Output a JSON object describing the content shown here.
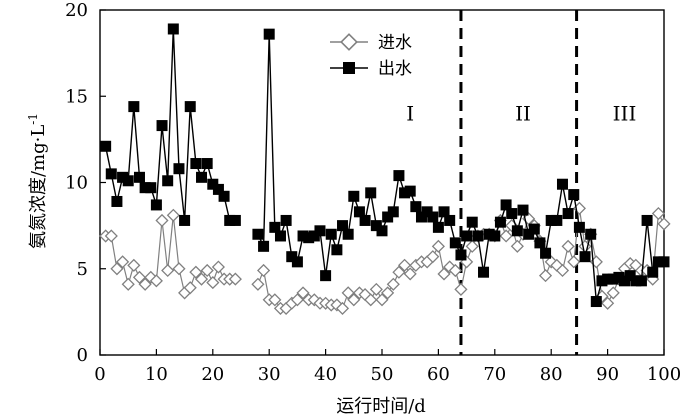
{
  "chart_data": {
    "type": "line",
    "title": "",
    "xlabel": "运行时间/d",
    "ylabel": "氨氮浓度/mg·L",
    "ylabel_sup": "-1",
    "xlim": [
      0,
      100
    ],
    "ylim": [
      0,
      20
    ],
    "xticks": [
      0,
      10,
      20,
      30,
      40,
      50,
      60,
      70,
      80,
      90,
      100
    ],
    "yticks": [
      0,
      5,
      10,
      15,
      20
    ],
    "grid": false,
    "legend": "top-center",
    "phase_boundaries": [
      64,
      84.5
    ],
    "phase_labels": [
      {
        "text": "I",
        "x": 55,
        "y": 14
      },
      {
        "text": "II",
        "x": 75,
        "y": 14
      },
      {
        "text": "III",
        "x": 93,
        "y": 14
      }
    ],
    "series": [
      {
        "name": "进水",
        "marker": "diamond-open",
        "color": "#808080",
        "x": [
          1,
          2,
          3,
          4,
          5,
          6,
          7,
          8,
          9,
          10,
          11,
          12,
          13,
          14,
          15,
          16,
          17,
          18,
          19,
          20,
          21,
          22,
          23,
          24,
          28,
          29,
          30,
          31,
          32,
          33,
          34,
          35,
          36,
          37,
          38,
          39,
          40,
          41,
          42,
          43,
          44,
          45,
          46,
          47,
          48,
          49,
          50,
          51,
          52,
          53,
          54,
          55,
          56,
          57,
          58,
          59,
          60,
          61,
          62,
          63,
          64,
          65,
          66,
          67,
          68,
          69,
          70,
          71,
          72,
          73,
          74,
          75,
          76,
          77,
          78,
          79,
          80,
          81,
          82,
          83,
          84,
          85,
          86,
          87,
          88,
          89,
          90,
          91,
          92,
          93,
          94,
          95,
          96,
          97,
          98,
          99,
          100
        ],
        "values": [
          6.9,
          6.9,
          5.0,
          5.4,
          4.1,
          5.2,
          4.5,
          4.1,
          4.5,
          4.3,
          7.8,
          4.9,
          8.1,
          5.0,
          3.6,
          3.9,
          4.8,
          4.4,
          4.9,
          4.2,
          5.1,
          4.4,
          4.4,
          4.4,
          4.1,
          4.9,
          3.2,
          3.2,
          2.7,
          2.7,
          3.0,
          3.2,
          3.6,
          3.2,
          3.2,
          3.0,
          3.0,
          2.9,
          2.9,
          2.7,
          3.6,
          3.2,
          3.6,
          3.5,
          3.2,
          3.8,
          3.2,
          3.6,
          4.1,
          4.8,
          5.2,
          4.7,
          5.2,
          5.4,
          5.4,
          5.7,
          6.3,
          4.7,
          5.1,
          4.9,
          3.8,
          5.4,
          6.3,
          6.9,
          7.0,
          7.0,
          6.9,
          7.8,
          6.9,
          7.5,
          6.3,
          7.0,
          7.9,
          7.5,
          6.6,
          4.6,
          5.4,
          5.2,
          4.9,
          6.3,
          5.4,
          8.5,
          6.3,
          7.0,
          5.4,
          3.4,
          3.0,
          3.6,
          4.4,
          5.0,
          5.3,
          5.2,
          4.9,
          4.9,
          4.4,
          8.2,
          7.6
        ]
      },
      {
        "name": "出水",
        "marker": "square-filled",
        "color": "#000000",
        "x": [
          1,
          2,
          3,
          4,
          5,
          6,
          7,
          8,
          9,
          10,
          11,
          12,
          13,
          14,
          15,
          16,
          17,
          18,
          19,
          20,
          21,
          22,
          23,
          24,
          28,
          29,
          30,
          31,
          32,
          33,
          34,
          35,
          36,
          37,
          38,
          39,
          40,
          41,
          42,
          43,
          44,
          45,
          46,
          47,
          48,
          49,
          50,
          51,
          52,
          53,
          54,
          55,
          56,
          57,
          58,
          59,
          60,
          61,
          62,
          63,
          64,
          65,
          66,
          67,
          68,
          69,
          70,
          71,
          72,
          73,
          74,
          75,
          76,
          77,
          78,
          79,
          80,
          81,
          82,
          83,
          84,
          85,
          86,
          87,
          88,
          89,
          90,
          91,
          92,
          93,
          94,
          95,
          96,
          97,
          98,
          99,
          100
        ],
        "values": [
          12.1,
          10.5,
          8.9,
          10.3,
          10.1,
          14.4,
          10.3,
          9.7,
          9.7,
          8.7,
          13.3,
          10.1,
          18.9,
          10.8,
          7.8,
          14.4,
          11.1,
          10.3,
          11.1,
          9.9,
          9.6,
          9.2,
          7.8,
          7.8,
          7.0,
          6.3,
          18.6,
          7.4,
          6.9,
          7.8,
          5.7,
          5.4,
          6.9,
          6.8,
          6.9,
          7.2,
          4.6,
          7.0,
          6.1,
          7.5,
          7.0,
          9.2,
          8.3,
          7.8,
          9.4,
          7.5,
          7.2,
          8.0,
          8.3,
          10.4,
          9.4,
          9.5,
          8.6,
          8.0,
          8.3,
          8.0,
          7.4,
          8.3,
          7.8,
          6.5,
          5.8,
          6.9,
          7.7,
          6.9,
          4.8,
          7.0,
          6.9,
          7.7,
          8.7,
          8.2,
          7.2,
          8.4,
          7.0,
          7.3,
          6.5,
          5.9,
          7.8,
          7.8,
          9.9,
          8.2,
          9.3,
          7.4,
          5.7,
          7.0,
          3.1,
          4.3,
          4.4,
          4.4,
          4.5,
          4.3,
          4.6,
          4.3,
          4.3,
          7.8,
          4.8,
          5.4,
          5.4
        ]
      }
    ]
  }
}
